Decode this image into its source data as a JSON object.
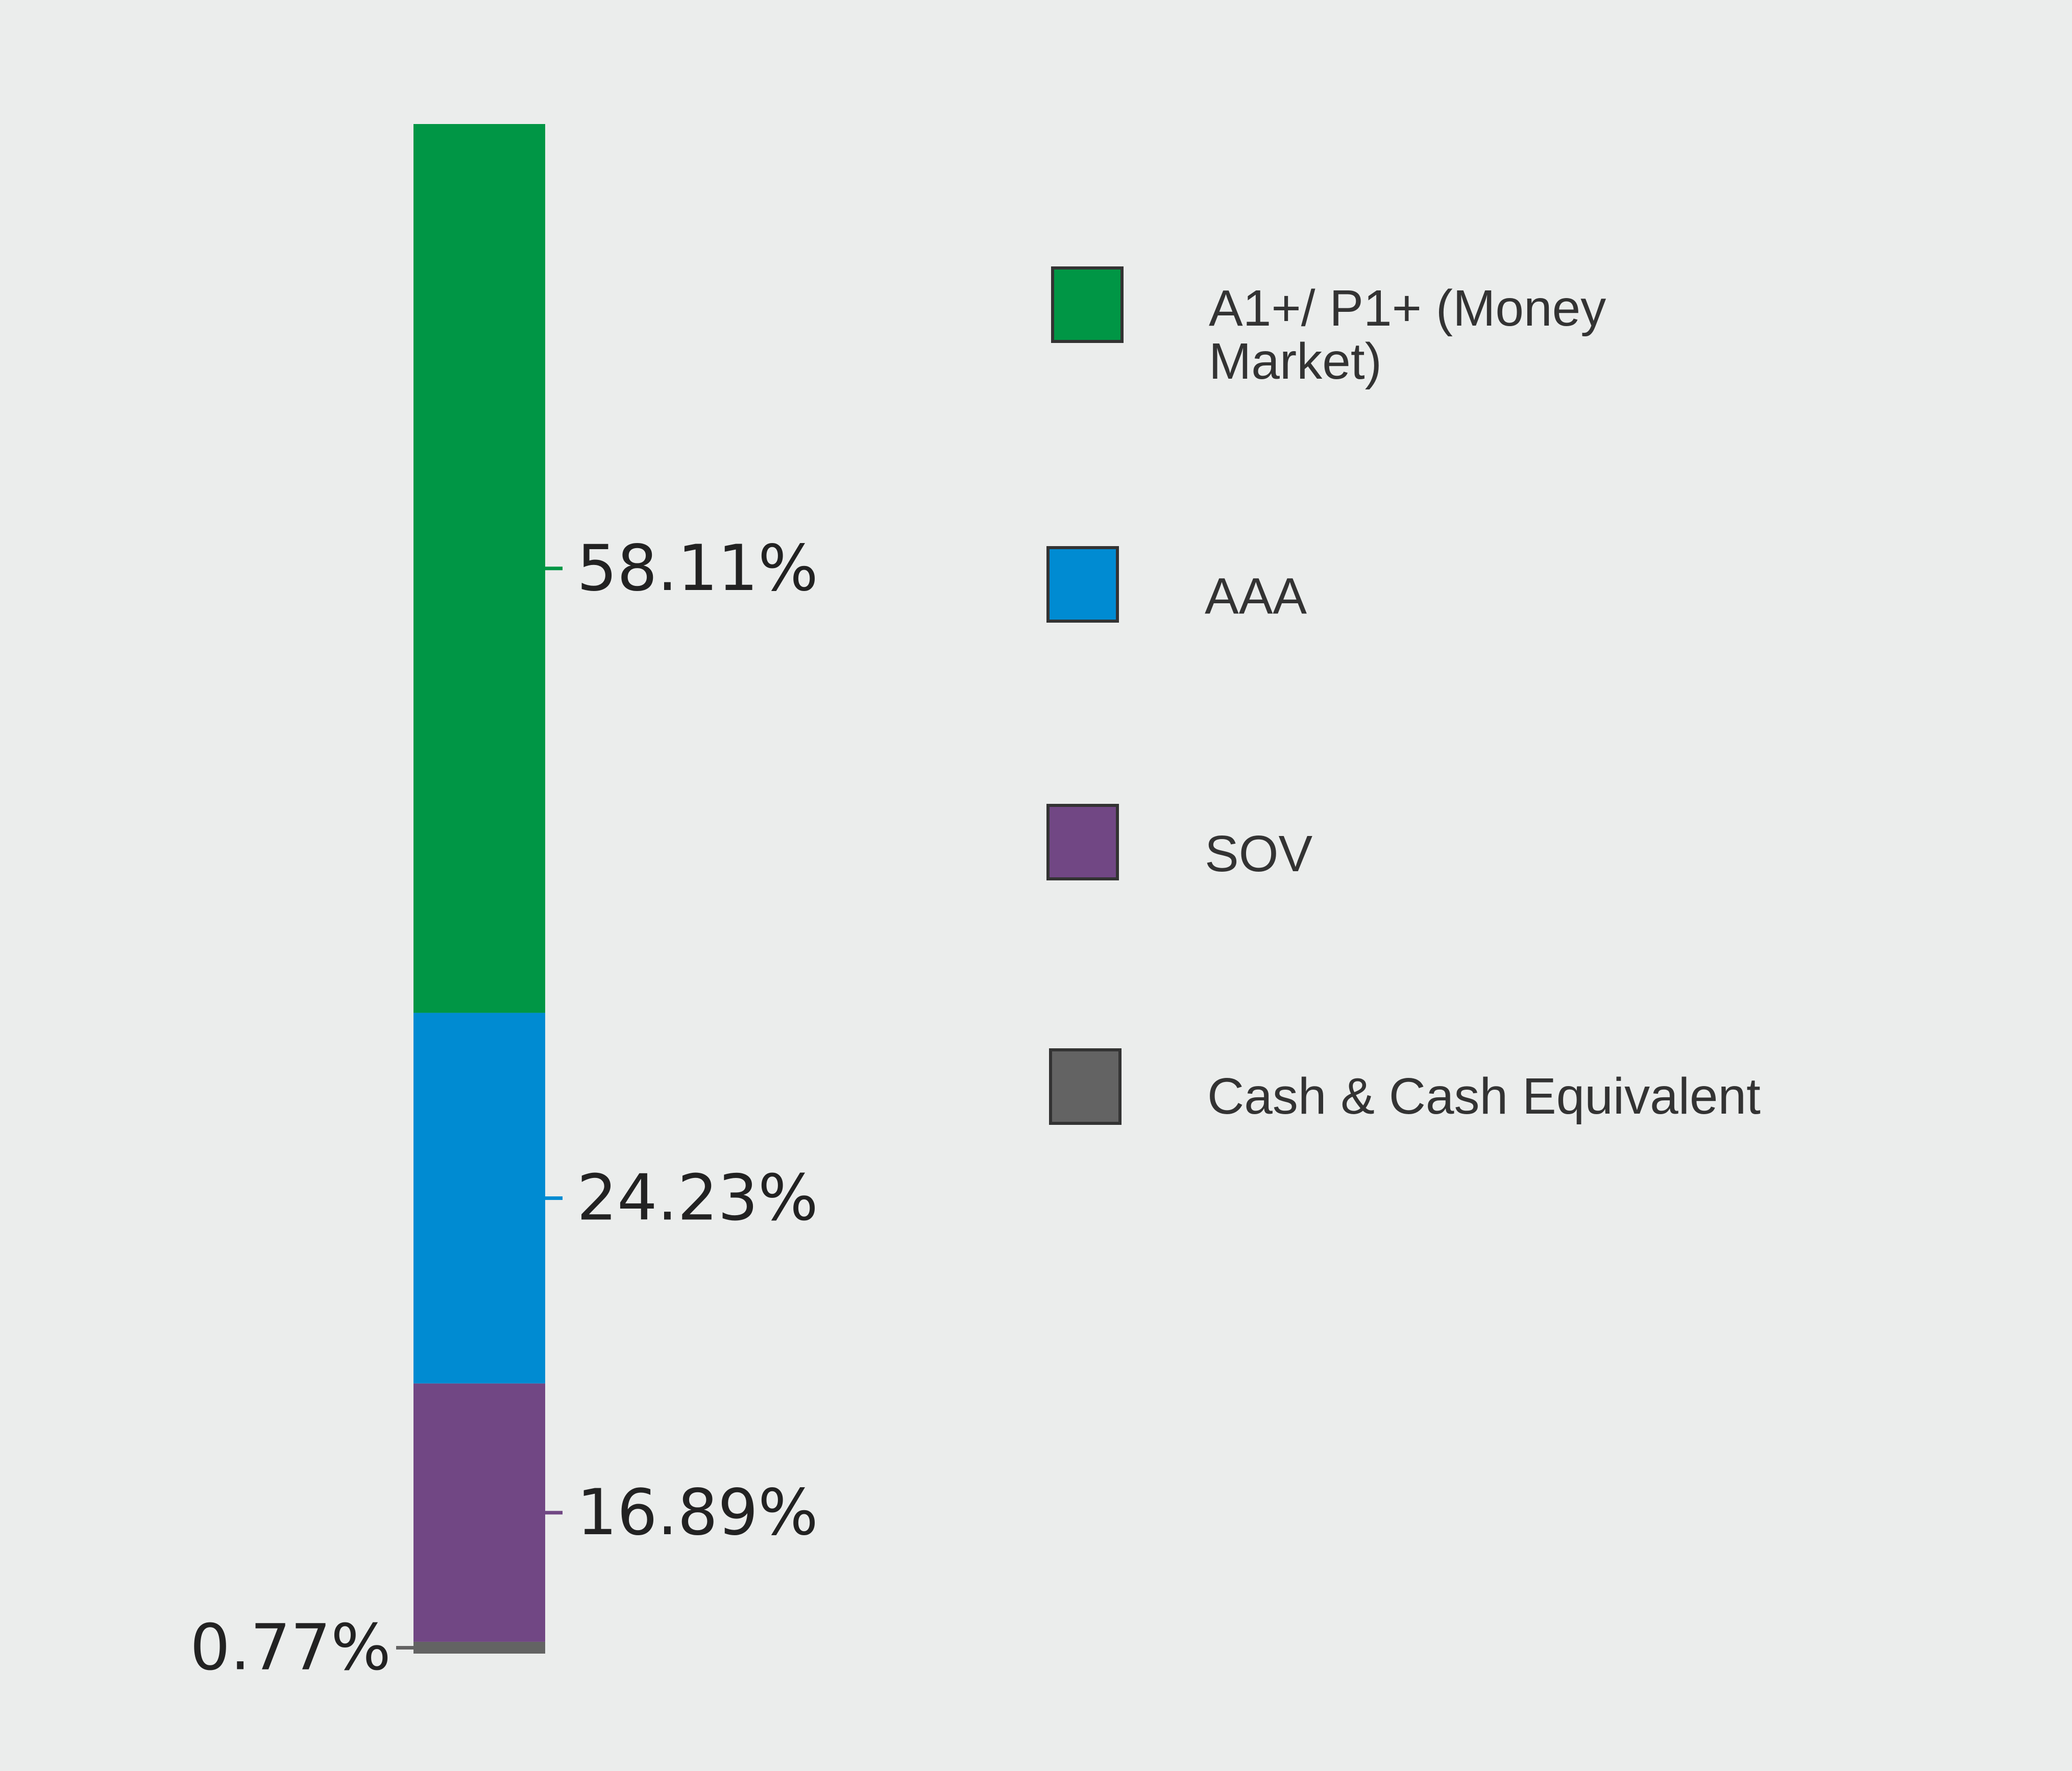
{
  "chart_data": {
    "type": "bar",
    "stacked": true,
    "categories": [
      "A1+/ P1+ (Money Market)",
      "AAA",
      "SOV",
      "Cash & Cash Equivalent"
    ],
    "values": [
      58.11,
      24.23,
      16.89,
      0.77
    ],
    "labels": [
      "58.11%",
      "24.23%",
      "16.89%",
      "0.77%"
    ],
    "unit": "%",
    "legend_position": "right",
    "colors": {
      "A1+/ P1+ (Money Market)": "#009645",
      "AAA": "#008bd2",
      "SOV": "#714784",
      "Cash & Cash Equivalent": "#636363"
    }
  },
  "legend": {
    "items": [
      {
        "label": "A1+/ P1+ (Money Market)",
        "color": "#009645",
        "icon": "green-square-icon"
      },
      {
        "label": "AAA",
        "color": "#008bd2",
        "icon": "blue-square-icon"
      },
      {
        "label": "SOV",
        "color": "#714784",
        "icon": "purple-square-icon"
      },
      {
        "label": "Cash & Cash Equivalent",
        "color": "#636363",
        "icon": "gray-square-icon"
      }
    ]
  },
  "background_color": "#ebedec"
}
